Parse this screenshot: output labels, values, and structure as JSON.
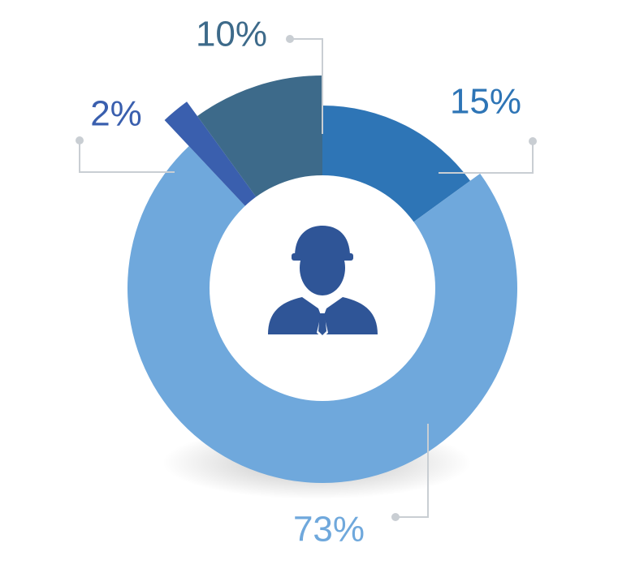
{
  "chart_data": {
    "type": "donut",
    "categories": [
      null,
      null,
      null,
      null
    ],
    "values": [
      15,
      73,
      2,
      10
    ],
    "value_labels": [
      "15%",
      "73%",
      "2%",
      "10%"
    ],
    "colors": [
      "#2e75b6",
      "#6fa8dc",
      "#3a5fae",
      "#3d6a8a"
    ]
  }
}
